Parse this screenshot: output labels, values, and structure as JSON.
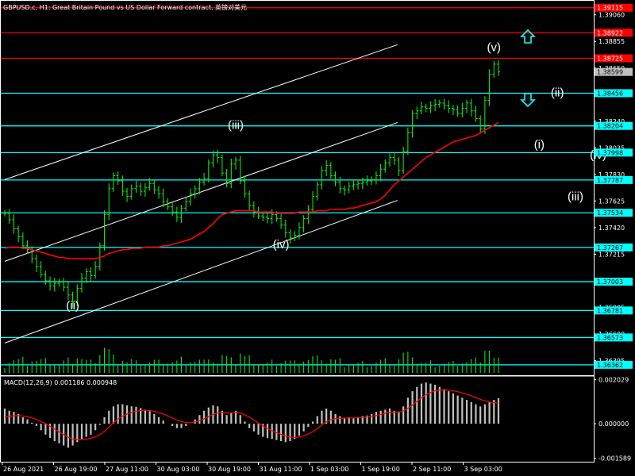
{
  "header": {
    "title": "GBPUSD.c, H1:  Great Britain Pound vs US Dollar Forward contract, 英镑对美元"
  },
  "colors": {
    "background": "#000000",
    "axis": "#ffffff",
    "candle": "#00ff00",
    "ma": "#ff0000",
    "channel": "#ffffff",
    "level_red": "#ff0000",
    "level_cyan": "#00ffff",
    "macd_hist": "#c0c0c0",
    "macd_signal": "#ff0000",
    "arrow": "#00ffff",
    "price_marker": "#c0c0c0"
  },
  "chart_data": {
    "type": "line",
    "title": "GBPUSD.c, H1:  Great Britain Pound vs US Dollar Forward contract, 英镑对美元",
    "price_axis": {
      "ticks": [
        "1.39060",
        "1.38855",
        "1.38650",
        "1.38445",
        "1.38240",
        "1.38035",
        "1.37830",
        "1.37625",
        "1.37420",
        "1.37215",
        "1.37010",
        "1.36805",
        "1.36600",
        "1.36395"
      ],
      "ylim": [
        1.363,
        1.3915
      ]
    },
    "time_axis": {
      "labels": [
        "26 Aug 2021",
        "26 Aug 19:00",
        "27 Aug 11:00",
        "30 Aug 03:00",
        "30 Aug 19:00",
        "31 Aug 11:00",
        "1 Sep 03:00",
        "1 Sep 19:00",
        "2 Sep 11:00",
        "3 Sep 03:00"
      ]
    },
    "levels": [
      {
        "value": 1.39115,
        "label": "1.39115",
        "color": "#ff0000"
      },
      {
        "value": 1.38922,
        "label": "1.38922",
        "color": "#ff0000"
      },
      {
        "value": 1.38725,
        "label": "1.38725",
        "color": "#ff0000"
      },
      {
        "value": 1.38456,
        "label": "1.38456",
        "color": "#00ffff"
      },
      {
        "value": 1.38204,
        "label": "1.38204",
        "color": "#00ffff"
      },
      {
        "value": 1.37998,
        "label": "1.37998",
        "color": "#00ffff"
      },
      {
        "value": 1.37787,
        "label": "1.37787",
        "color": "#00ffff"
      },
      {
        "value": 1.37534,
        "label": "1.37534",
        "color": "#00ffff"
      },
      {
        "value": 1.37267,
        "label": "1.37267",
        "color": "#00ffff"
      },
      {
        "value": 1.37003,
        "label": "1.37003",
        "color": "#00ffff"
      },
      {
        "value": 1.36781,
        "label": "1.36781",
        "color": "#00ffff"
      },
      {
        "value": 1.36573,
        "label": "1.36573",
        "color": "#00ffff"
      },
      {
        "value": 1.36362,
        "label": "1.36362",
        "color": "#00ffff"
      }
    ],
    "current_price": "1.38599",
    "close_series": [
      1.3753,
      1.3748,
      1.3741,
      1.3735,
      1.3728,
      1.3725,
      1.3718,
      1.3712,
      1.3706,
      1.3701,
      1.3697,
      1.3699,
      1.37,
      1.3696,
      1.369,
      1.3684,
      1.3695,
      1.3703,
      1.3708,
      1.3705,
      1.3712,
      1.3728,
      1.3752,
      1.3772,
      1.3782,
      1.3778,
      1.377,
      1.3766,
      1.3772,
      1.3774,
      1.377,
      1.3773,
      1.3776,
      1.3771,
      1.3768,
      1.3762,
      1.3758,
      1.3754,
      1.375,
      1.3757,
      1.3762,
      1.3768,
      1.3772,
      1.3777,
      1.378,
      1.3792,
      1.3798,
      1.3796,
      1.3784,
      1.3776,
      1.3791,
      1.3794,
      1.3778,
      1.3768,
      1.3759,
      1.3754,
      1.3751,
      1.375,
      1.3749,
      1.3752,
      1.3749,
      1.3744,
      1.3738,
      1.3734,
      1.3736,
      1.3742,
      1.3749,
      1.3756,
      1.3766,
      1.3775,
      1.3786,
      1.379,
      1.3782,
      1.3777,
      1.3772,
      1.3771,
      1.3774,
      1.3775,
      1.3776,
      1.3777,
      1.3778,
      1.3779,
      1.3782,
      1.3787,
      1.3792,
      1.3796,
      1.3794,
      1.3786,
      1.3801,
      1.3815,
      1.383,
      1.3832,
      1.3835,
      1.3834,
      1.3836,
      1.3837,
      1.3838,
      1.3836,
      1.3834,
      1.3833,
      1.383,
      1.3834,
      1.3838,
      1.3832,
      1.3826,
      1.3818,
      1.384,
      1.386,
      1.3868,
      1.3862
    ],
    "ma_series": [
      1.3726,
      1.3727,
      1.3727,
      1.3727,
      1.3726,
      1.3726,
      1.3725,
      1.3724,
      1.3723,
      1.3722,
      1.3721,
      1.372,
      1.3719,
      1.3719,
      1.3718,
      1.3718,
      1.3718,
      1.3718,
      1.3718,
      1.3718,
      1.3718,
      1.3719,
      1.372,
      1.3722,
      1.3723,
      1.3724,
      1.3725,
      1.3725,
      1.3726,
      1.3726,
      1.3726,
      1.3727,
      1.3727,
      1.3727,
      1.3727,
      1.3728,
      1.3728,
      1.3729,
      1.373,
      1.3731,
      1.3732,
      1.3733,
      1.3735,
      1.3737,
      1.3739,
      1.3742,
      1.3745,
      1.3749,
      1.3752,
      1.3753,
      1.3754,
      1.3755,
      1.3755,
      1.3755,
      1.3755,
      1.3755,
      1.3754,
      1.3754,
      1.3754,
      1.3754,
      1.3753,
      1.3753,
      1.3753,
      1.3753,
      1.3753,
      1.3754,
      1.3754,
      1.3754,
      1.3754,
      1.3755,
      1.3755,
      1.3755,
      1.3756,
      1.3756,
      1.3756,
      1.3756,
      1.3757,
      1.3757,
      1.3758,
      1.3759,
      1.376,
      1.3761,
      1.3762,
      1.3764,
      1.3767,
      1.3771,
      1.3775,
      1.3778,
      1.3781,
      1.3784,
      1.3787,
      1.379,
      1.3793,
      1.3796,
      1.3798,
      1.38,
      1.3802,
      1.3804,
      1.3806,
      1.3808,
      1.3809,
      1.381,
      1.3811,
      1.3812,
      1.3813,
      1.3815,
      1.3817,
      1.3819,
      1.3821,
      1.3823
    ],
    "channel_lines": [
      {
        "x0": 0,
        "y0": 1.3779,
        "x1": 0.78,
        "y1": 1.3883
      },
      {
        "x0": 0,
        "y0": 1.3716,
        "x1": 0.78,
        "y1": 1.3823
      },
      {
        "x0": 0,
        "y0": 1.3653,
        "x1": 0.78,
        "y1": 1.3763
      }
    ],
    "annotations": [
      {
        "text": "(ii)",
        "index": 15,
        "value": 1.3679
      },
      {
        "text": "(iii)",
        "index": 51,
        "value": 1.3818
      },
      {
        "text": "(iv)",
        "index": 61,
        "value": 1.3726
      },
      {
        "text": "(v)",
        "index": 108,
        "value": 1.3878
      },
      {
        "text": "(ii)",
        "index": 122,
        "value": 1.3843
      },
      {
        "text": "(i)",
        "index": 118,
        "value": 1.3803
      },
      {
        "text": "(iv)",
        "index": 131,
        "value": 1.3795
      },
      {
        "text": "(iii)",
        "index": 126,
        "value": 1.3763
      }
    ],
    "macd": {
      "label": "MACD(12,26,9) 0.001186 0.000948",
      "ticks": [
        "0.002029",
        "0.000000",
        "-0.001589"
      ],
      "ylim": [
        -0.00175,
        0.0022
      ],
      "hist": [
        0.0007,
        0.0006,
        0.00055,
        0.00045,
        0.0003,
        0.0002,
        5e-05,
        -0.0001,
        -0.0003,
        -0.0005,
        -0.00065,
        -0.0008,
        -0.0009,
        -0.001,
        -0.0011,
        -0.001,
        -0.00085,
        -0.0007,
        -0.0006,
        -0.0005,
        -0.0003,
        -5e-05,
        0.0003,
        0.0006,
        0.0008,
        0.0009,
        0.0009,
        0.00085,
        0.0008,
        0.00078,
        0.00072,
        0.00065,
        0.00058,
        0.00045,
        0.0003,
        0.00015,
        0.0,
        -0.0001,
        -0.0002,
        -0.0002,
        -0.0001,
        0.0,
        0.0002,
        0.0004,
        0.0006,
        0.00075,
        0.00085,
        0.0008,
        0.0006,
        0.0004,
        0.0005,
        0.0006,
        0.0004,
        0.0001,
        -0.0002,
        -0.00035,
        -0.0005,
        -0.0006,
        -0.00065,
        -0.0007,
        -0.00075,
        -0.0008,
        -0.00085,
        -0.0008,
        -0.0007,
        -0.00055,
        -0.00035,
        -0.00015,
        0.0001,
        0.00035,
        0.0006,
        0.0007,
        0.0006,
        0.00045,
        0.00035,
        0.00028,
        0.0003,
        0.00025,
        0.0003,
        0.00035,
        0.00038,
        0.00045,
        0.00055,
        0.0006,
        0.00065,
        0.0007,
        0.0006,
        0.00055,
        0.0008,
        0.0012,
        0.0015,
        0.0017,
        0.00185,
        0.0019,
        0.00185,
        0.0018,
        0.0017,
        0.0016,
        0.0015,
        0.0014,
        0.0013,
        0.0012,
        0.0011,
        0.001,
        0.0009,
        0.0008,
        0.0009,
        0.001,
        0.0011,
        0.00118
      ],
      "signal": [
        0.0003,
        0.00035,
        0.00037,
        0.00038,
        0.00036,
        0.00033,
        0.00027,
        0.0002,
        0.0001,
        0.0,
        -0.00012,
        -0.00025,
        -0.00038,
        -0.0005,
        -0.00062,
        -0.0007,
        -0.00073,
        -0.00073,
        -0.00071,
        -0.00067,
        -0.0006,
        -0.0005,
        -0.00035,
        -0.00015,
        5e-05,
        0.00022,
        0.00035,
        0.00045,
        0.00052,
        0.00058,
        0.00061,
        0.00062,
        0.00061,
        0.00058,
        0.00052,
        0.00045,
        0.00036,
        0.00027,
        0.00017,
        0.0001,
        6e-05,
        5e-05,
        8e-05,
        0.00014,
        0.00023,
        0.00033,
        0.00043,
        0.0005,
        0.00052,
        0.0005,
        0.0005,
        0.00052,
        0.0005,
        0.00042,
        0.0003,
        0.00017,
        3e-05,
        -0.0001,
        -0.00022,
        -0.00032,
        -0.00041,
        -0.00049,
        -0.00056,
        -0.00061,
        -0.00063,
        -0.00061,
        -0.00056,
        -0.00048,
        -0.00036,
        -0.00022,
        -6e-05,
        9e-05,
        0.00019,
        0.00024,
        0.00026,
        0.00026,
        0.00027,
        0.00027,
        0.00028,
        0.00029,
        0.00031,
        0.00034,
        0.00038,
        0.00043,
        0.00048,
        0.00052,
        0.00054,
        0.00054,
        0.00059,
        0.00071,
        0.00087,
        0.00103,
        0.0012,
        0.00134,
        0.00144,
        0.00152,
        0.00155,
        0.00156,
        0.00155,
        0.00152,
        0.00148,
        0.00142,
        0.00136,
        0.00129,
        0.0012,
        0.00112,
        0.00106,
        0.001,
        0.00097,
        0.00095
      ]
    }
  }
}
